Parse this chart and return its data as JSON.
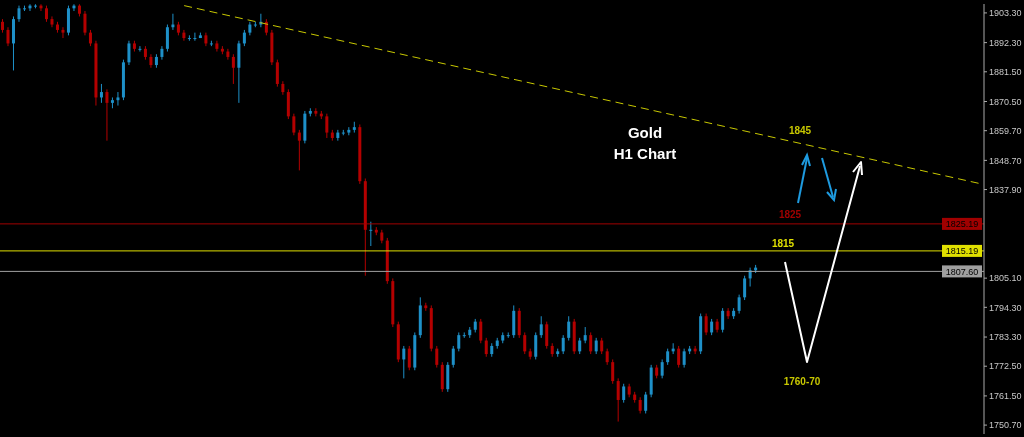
{
  "chart_data": {
    "type": "candlestick",
    "title": "Gold",
    "subtitle": "H1 Chart",
    "categories": [
      null,
      null,
      null,
      null,
      null,
      null,
      null,
      null,
      null,
      null,
      null,
      null,
      null,
      null,
      null,
      null,
      null,
      null,
      null,
      null,
      null,
      null,
      null,
      null,
      null,
      null,
      null,
      null,
      null,
      null,
      null,
      null,
      null,
      null,
      null,
      null,
      null,
      null,
      null,
      null,
      null,
      null,
      null,
      null,
      null,
      null,
      null,
      null,
      null,
      null,
      null,
      null,
      null,
      null,
      null,
      null,
      null,
      null,
      null,
      null,
      null,
      null,
      null,
      null,
      null,
      null,
      null,
      null,
      null,
      null,
      null,
      null,
      null,
      null,
      null,
      null,
      null,
      null,
      null,
      null,
      null,
      null,
      null,
      null,
      null,
      null,
      null,
      null,
      null,
      null,
      null,
      null,
      null,
      null,
      null,
      null,
      null,
      null,
      null,
      null,
      null,
      null,
      null,
      null,
      null,
      null,
      null,
      null,
      null,
      null,
      null,
      null,
      null,
      null,
      null,
      null,
      null,
      null,
      null,
      null,
      null,
      null,
      null,
      null,
      null,
      null,
      null,
      null,
      null,
      null,
      null,
      null,
      null,
      null,
      null,
      null,
      null,
      null,
      null,
      null,
      null,
      null,
      null,
      null,
      null,
      null,
      null,
      null,
      null,
      null,
      null,
      null,
      null,
      null,
      null,
      null,
      null,
      null,
      null,
      null,
      null,
      null,
      null,
      null,
      null,
      null,
      null,
      null,
      null,
      null,
      null,
      null,
      null,
      null,
      null,
      null,
      null,
      null,
      null
    ],
    "ohlc": [
      [
        1900,
        1901,
        1896,
        1897
      ],
      [
        1897,
        1898,
        1891,
        1892
      ],
      [
        1892,
        1902,
        1882,
        1901
      ],
      [
        1901,
        1906,
        1900,
        1905
      ],
      [
        1905,
        1906,
        1904,
        1905
      ],
      [
        1905,
        1906.5,
        1904,
        1906
      ],
      [
        1906,
        1906.5,
        1905,
        1906
      ],
      [
        1906,
        1906.5,
        1904,
        1905
      ],
      [
        1905,
        1906,
        1900,
        1901
      ],
      [
        1901,
        1902,
        1898,
        1899
      ],
      [
        1899,
        1900,
        1896,
        1897
      ],
      [
        1897,
        1898,
        1894,
        1896
      ],
      [
        1896,
        1906,
        1895,
        1905
      ],
      [
        1905,
        1906.5,
        1904,
        1906
      ],
      [
        1906,
        1906.5,
        1902,
        1903
      ],
      [
        1903,
        1904,
        1895,
        1896
      ],
      [
        1896,
        1897,
        1891,
        1892
      ],
      [
        1892,
        1893,
        1869,
        1872
      ],
      [
        1872,
        1877,
        1870,
        1874
      ],
      [
        1874,
        1875,
        1856,
        1870
      ],
      [
        1870,
        1872,
        1868,
        1871
      ],
      [
        1871,
        1874,
        1869,
        1872
      ],
      [
        1872,
        1886,
        1871,
        1885
      ],
      [
        1885,
        1893,
        1884,
        1892
      ],
      [
        1892,
        1893,
        1889,
        1890
      ],
      [
        1890,
        1891,
        1889,
        1890
      ],
      [
        1890,
        1891,
        1886,
        1887
      ],
      [
        1887,
        1888,
        1883,
        1884
      ],
      [
        1884,
        1888,
        1883,
        1887
      ],
      [
        1887,
        1891,
        1886,
        1890
      ],
      [
        1890,
        1899,
        1889,
        1898
      ],
      [
        1898,
        1903,
        1897,
        1899
      ],
      [
        1899,
        1900,
        1895,
        1896
      ],
      [
        1896,
        1897,
        1893,
        1894
      ],
      [
        1894,
        1895,
        1893,
        1894
      ],
      [
        1894,
        1896,
        1893,
        1894
      ],
      [
        1894,
        1896,
        1894,
        1895
      ],
      [
        1895,
        1896,
        1891,
        1892
      ],
      [
        1892,
        1893,
        1891,
        1892
      ],
      [
        1892,
        1893,
        1889,
        1890
      ],
      [
        1890,
        1891,
        1888,
        1889
      ],
      [
        1889,
        1890,
        1886,
        1887
      ],
      [
        1887,
        1888,
        1877,
        1883
      ],
      [
        1883,
        1893,
        1870,
        1892
      ],
      [
        1892,
        1897,
        1891,
        1896
      ],
      [
        1896,
        1900,
        1895,
        1899
      ],
      [
        1899,
        1900,
        1898,
        1899
      ],
      [
        1899,
        1903,
        1898,
        1900
      ],
      [
        1900,
        1901,
        1895,
        1896
      ],
      [
        1896,
        1897,
        1884,
        1885
      ],
      [
        1885,
        1886,
        1876,
        1877
      ],
      [
        1877,
        1878,
        1873,
        1874
      ],
      [
        1874,
        1875,
        1864,
        1865
      ],
      [
        1865,
        1866,
        1858,
        1859
      ],
      [
        1859,
        1860,
        1845,
        1856
      ],
      [
        1856,
        1867,
        1855,
        1866
      ],
      [
        1866,
        1868,
        1865,
        1867
      ],
      [
        1867,
        1868,
        1865,
        1866
      ],
      [
        1866,
        1867,
        1864,
        1865
      ],
      [
        1865,
        1866,
        1857,
        1859
      ],
      [
        1859,
        1860,
        1856,
        1857
      ],
      [
        1857,
        1860,
        1856,
        1859
      ],
      [
        1859,
        1860,
        1858,
        1859
      ],
      [
        1859,
        1861,
        1858,
        1860
      ],
      [
        1860,
        1863,
        1859,
        1861
      ],
      [
        1861,
        1862,
        1840,
        1841
      ],
      [
        1841,
        1842,
        1806,
        1823
      ],
      [
        1823,
        1826,
        1817,
        1823
      ],
      [
        1823,
        1824,
        1821,
        1822
      ],
      [
        1822,
        1823,
        1818,
        1819
      ],
      [
        1819,
        1820,
        1803,
        1804
      ],
      [
        1804,
        1805,
        1787,
        1788
      ],
      [
        1788,
        1789,
        1774,
        1775
      ],
      [
        1775,
        1780,
        1768,
        1779
      ],
      [
        1779,
        1780,
        1771,
        1772
      ],
      [
        1772,
        1785,
        1771,
        1784
      ],
      [
        1784,
        1798,
        1783,
        1795
      ],
      [
        1795,
        1796,
        1793,
        1794
      ],
      [
        1794,
        1795,
        1778,
        1779
      ],
      [
        1779,
        1780,
        1772,
        1773
      ],
      [
        1773,
        1774,
        1763,
        1764
      ],
      [
        1764,
        1774,
        1763,
        1773
      ],
      [
        1773,
        1780,
        1772,
        1779
      ],
      [
        1779,
        1785,
        1778,
        1784
      ],
      [
        1784,
        1785,
        1783,
        1784
      ],
      [
        1784,
        1787,
        1783,
        1786
      ],
      [
        1786,
        1790,
        1785,
        1789
      ],
      [
        1789,
        1790,
        1781,
        1782
      ],
      [
        1782,
        1783,
        1776,
        1777
      ],
      [
        1777,
        1781,
        1776,
        1780
      ],
      [
        1780,
        1783,
        1779,
        1782
      ],
      [
        1782,
        1785,
        1781,
        1784
      ],
      [
        1784,
        1785,
        1783,
        1784
      ],
      [
        1784,
        1795,
        1783,
        1793
      ],
      [
        1793,
        1794,
        1783,
        1784
      ],
      [
        1784,
        1785,
        1777,
        1778
      ],
      [
        1778,
        1779,
        1775,
        1776
      ],
      [
        1776,
        1785,
        1775,
        1784
      ],
      [
        1784,
        1791,
        1783,
        1788
      ],
      [
        1788,
        1789,
        1779,
        1780
      ],
      [
        1780,
        1781,
        1776,
        1777
      ],
      [
        1777,
        1779,
        1776,
        1778
      ],
      [
        1778,
        1784,
        1777,
        1783
      ],
      [
        1783,
        1791,
        1782,
        1789
      ],
      [
        1789,
        1790,
        1777,
        1778
      ],
      [
        1778,
        1783,
        1777,
        1782
      ],
      [
        1782,
        1787,
        1781,
        1784
      ],
      [
        1784,
        1785,
        1777,
        1778
      ],
      [
        1778,
        1783,
        1777,
        1782
      ],
      [
        1782,
        1783,
        1777,
        1778
      ],
      [
        1778,
        1779,
        1773,
        1774
      ],
      [
        1774,
        1775,
        1766,
        1767
      ],
      [
        1767,
        1768,
        1752,
        1760
      ],
      [
        1760,
        1766,
        1759,
        1765
      ],
      [
        1765,
        1766,
        1761,
        1762
      ],
      [
        1762,
        1763,
        1759,
        1760
      ],
      [
        1760,
        1761,
        1755,
        1756
      ],
      [
        1756,
        1763,
        1755,
        1762
      ],
      [
        1762,
        1773,
        1761,
        1772
      ],
      [
        1772,
        1773,
        1768,
        1769
      ],
      [
        1769,
        1775,
        1768,
        1774
      ],
      [
        1774,
        1779,
        1773,
        1778
      ],
      [
        1778,
        1781,
        1777,
        1779
      ],
      [
        1779,
        1780,
        1772,
        1773
      ],
      [
        1773,
        1779,
        1772,
        1778
      ],
      [
        1778,
        1780,
        1777,
        1779
      ],
      [
        1779,
        1780,
        1777,
        1778
      ],
      [
        1778,
        1792,
        1777,
        1791
      ],
      [
        1791,
        1792,
        1784,
        1785
      ],
      [
        1785,
        1790,
        1784,
        1789
      ],
      [
        1789,
        1790,
        1785,
        1786
      ],
      [
        1786,
        1794,
        1785,
        1793
      ],
      [
        1793,
        1794,
        1790,
        1791
      ],
      [
        1791,
        1794,
        1790,
        1793
      ],
      [
        1793,
        1799,
        1792,
        1798
      ],
      [
        1798,
        1806,
        1797,
        1805
      ],
      [
        1805,
        1809,
        1802,
        1808
      ],
      [
        1808,
        1810,
        1807,
        1809
      ],
      null,
      null,
      null,
      null,
      null,
      null,
      null,
      null,
      null,
      null,
      null,
      null,
      null,
      null,
      null,
      null,
      null,
      null,
      null,
      null,
      null,
      null,
      null,
      null,
      null,
      null,
      null,
      null,
      null,
      null,
      null,
      null,
      null,
      null,
      null,
      null,
      null,
      null,
      null,
      null,
      null
    ],
    "colors": [
      "#b40000",
      "#b40000",
      "#1e90c8",
      "#1e90c8",
      "#1e90c8",
      "#1e90c8",
      "#1e90c8",
      "#b40000",
      "#b40000",
      "#b40000",
      "#b40000",
      "#b40000",
      "#1e90c8",
      "#1e90c8",
      "#b40000",
      "#b40000",
      "#b40000",
      "#b40000",
      "#1e90c8",
      "#b40000",
      "#1e90c8",
      "#1e90c8",
      "#1e90c8",
      "#1e90c8",
      "#b40000",
      "#1e90c8",
      "#b40000",
      "#b40000",
      "#1e90c8",
      "#1e90c8",
      "#1e90c8",
      "#1e90c8",
      "#b40000",
      "#b40000",
      "#1e90c8",
      "#1e90c8",
      "#1e90c8",
      "#b40000",
      "#1e90c8",
      "#b40000",
      "#b40000",
      "#b40000",
      "#b40000",
      "#1e90c8",
      "#1e90c8",
      "#1e90c8",
      "#1e90c8",
      "#1e90c8",
      "#b40000",
      "#b40000",
      "#b40000",
      "#b40000",
      "#b40000",
      "#b40000",
      "#b40000",
      "#1e90c8",
      "#1e90c8",
      "#b40000",
      "#b40000",
      "#b40000",
      "#b40000",
      "#1e90c8",
      "#1e90c8",
      "#1e90c8",
      "#1e90c8",
      "#b40000",
      "#b40000",
      "#1e90c8",
      "#b40000",
      "#b40000",
      "#b40000",
      "#b40000",
      "#b40000",
      "#1e90c8",
      "#b40000",
      "#1e90c8",
      "#1e90c8",
      "#b40000",
      "#b40000",
      "#b40000",
      "#b40000",
      "#1e90c8",
      "#1e90c8",
      "#1e90c8",
      "#1e90c8",
      "#1e90c8",
      "#1e90c8",
      "#b40000",
      "#b40000",
      "#1e90c8",
      "#1e90c8",
      "#1e90c8",
      "#1e90c8",
      "#1e90c8",
      "#b40000",
      "#b40000",
      "#b40000",
      "#1e90c8",
      "#1e90c8",
      "#b40000",
      "#b40000",
      "#1e90c8",
      "#1e90c8",
      "#1e90c8",
      "#b40000",
      "#1e90c8",
      "#1e90c8",
      "#b40000",
      "#1e90c8",
      "#b40000",
      "#b40000",
      "#b40000",
      "#b40000",
      "#1e90c8",
      "#b40000",
      "#b40000",
      "#b40000",
      "#1e90c8",
      "#1e90c8",
      "#b40000",
      "#1e90c8",
      "#1e90c8",
      "#1e90c8",
      "#b40000",
      "#1e90c8",
      "#1e90c8",
      "#b40000",
      "#1e90c8",
      "#b40000",
      "#1e90c8",
      "#b40000",
      "#1e90c8",
      "#b40000",
      "#1e90c8",
      "#1e90c8",
      "#1e90c8",
      "#1e90c8",
      "#1e90c8",
      null,
      null,
      null,
      null,
      null,
      null,
      null,
      null,
      null,
      null,
      null,
      null,
      null,
      null,
      null,
      null,
      null,
      null,
      null,
      null,
      null,
      null,
      null,
      null,
      null,
      null,
      null,
      null,
      null,
      null,
      null,
      null,
      null,
      null,
      null,
      null,
      null,
      null,
      null,
      null,
      null
    ],
    "series": [
      {
        "type": "line",
        "values": [
          null,
          null,
          null,
          null,
          null,
          null,
          null,
          null,
          null,
          null,
          null,
          null,
          null,
          null,
          null,
          null,
          null,
          null,
          null,
          null,
          null,
          null,
          null,
          null,
          null,
          null,
          null,
          null,
          null,
          null,
          null,
          null,
          null,
          1906,
          null,
          null,
          null,
          null,
          null,
          null,
          null,
          null,
          null,
          null,
          null,
          null,
          null,
          null,
          null,
          null,
          null,
          null,
          null,
          null,
          null,
          null,
          null,
          null,
          null,
          null,
          null,
          null,
          null,
          null,
          null,
          null,
          null,
          null,
          null,
          null,
          null,
          null,
          null,
          null,
          null,
          null,
          null,
          null,
          null,
          null,
          null,
          null,
          null,
          null,
          null,
          null,
          null,
          null,
          null,
          null,
          null,
          null,
          null,
          null,
          null,
          null,
          null,
          null,
          null,
          null,
          null,
          null,
          null,
          null,
          null,
          null,
          null,
          null,
          null,
          null,
          null,
          null,
          null,
          null,
          null,
          null,
          null,
          null,
          null,
          null,
          null,
          null,
          null,
          null,
          null,
          null,
          null,
          null,
          null,
          null,
          null,
          null,
          null,
          null,
          null,
          null,
          null,
          null,
          null,
          null,
          null,
          null,
          null,
          null,
          null,
          null,
          null,
          null,
          null,
          null,
          null,
          null,
          null,
          null,
          null,
          null,
          null,
          null,
          null,
          null,
          null,
          null,
          null,
          null,
          null,
          null,
          null,
          null,
          null,
          null,
          null,
          null,
          null,
          null,
          null,
          null,
          null,
          null,
          1840
        ],
        "color": "#c8c800",
        "line_style": "dashed"
      }
    ],
    "ylim": [
      1747.4,
      1906.6
    ],
    "yticks": [
      {
        "value": 1903.3,
        "label": "1903.30"
      },
      {
        "value": 1892.3,
        "label": "1892.30"
      },
      {
        "value": 1881.5,
        "label": "1881.50"
      },
      {
        "value": 1870.5,
        "label": "1870.50"
      },
      {
        "value": 1859.7,
        "label": "1859.70"
      },
      {
        "value": 1848.7,
        "label": "1848.70"
      },
      {
        "value": 1837.9,
        "label": "1837.90"
      },
      {
        "value": 1805.1,
        "label": "1805.10"
      },
      {
        "value": 1794.3,
        "label": "1794.30"
      },
      {
        "value": 1783.3,
        "label": "1783.30"
      },
      {
        "value": 1772.5,
        "label": "1772.50"
      },
      {
        "value": 1761.5,
        "label": "1761.50"
      },
      {
        "value": 1750.7,
        "label": "1750.70"
      }
    ],
    "tick_labels": "y",
    "ref_lines": [
      {
        "axis": "y",
        "value": 1825.19,
        "label": "1825.19",
        "color": "#a00000"
      },
      {
        "axis": "y",
        "value": 1815.19,
        "label": "1815.19",
        "color": "#e0e000"
      },
      {
        "axis": "y",
        "value": 1807.6,
        "label": "1807.60",
        "color": "#a0a0a0"
      }
    ],
    "annotations": [
      "1845",
      "1825",
      "1815",
      "1760-70"
    ]
  }
}
